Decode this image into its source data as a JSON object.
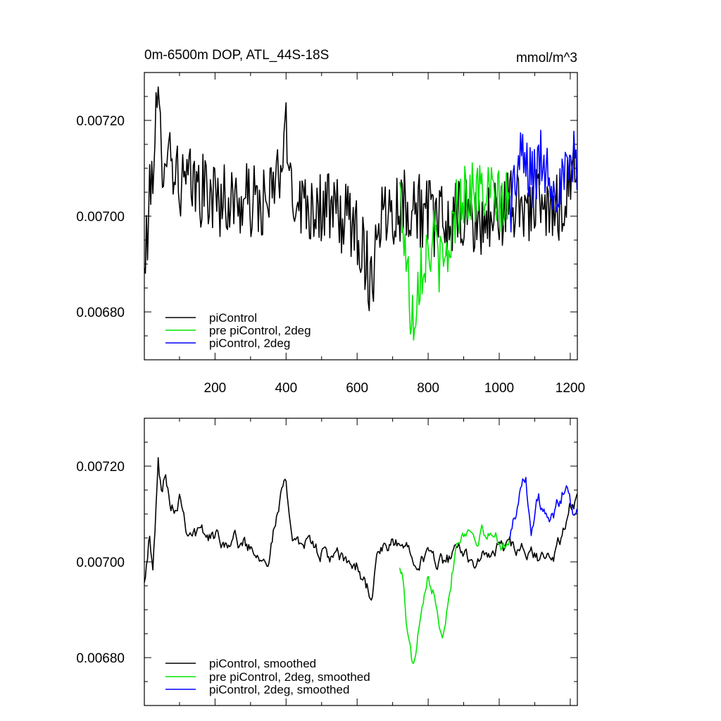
{
  "chart_data": [
    {
      "type": "line",
      "title": "0m-6500m DOP, ATL_44S-18S",
      "units": "mmol/m^3",
      "xlim": [
        1,
        1220
      ],
      "ylim": [
        0.0067,
        0.0073
      ],
      "x_ticks": [
        200,
        400,
        600,
        800,
        1000,
        1200
      ],
      "y_ticks": [
        0.0068,
        0.007,
        0.0072
      ],
      "y_tick_labels": [
        "0.00680",
        "0.00700",
        "0.00720"
      ],
      "legend_position": "bottom-left",
      "grid": false,
      "series": [
        {
          "name": "piControl",
          "color": "#000000",
          "x_start": 1,
          "x_end": 1220,
          "points": [
            [
              1,
              0.00687
            ],
            [
              10,
              0.00698
            ],
            [
              20,
              0.00706
            ],
            [
              30,
              0.00718
            ],
            [
              40,
              0.00722
            ],
            [
              50,
              0.00712
            ],
            [
              60,
              0.00716
            ],
            [
              80,
              0.00712
            ],
            [
              100,
              0.00707
            ],
            [
              150,
              0.00706
            ],
            [
              200,
              0.00704
            ],
            [
              250,
              0.00703
            ],
            [
              300,
              0.00703
            ],
            [
              350,
              0.00702
            ],
            [
              390,
              0.00712
            ],
            [
              400,
              0.00716
            ],
            [
              420,
              0.00705
            ],
            [
              450,
              0.00703
            ],
            [
              500,
              0.00702
            ],
            [
              550,
              0.007
            ],
            [
              600,
              0.00698
            ],
            [
              640,
              0.00686
            ],
            [
              660,
              0.007
            ],
            [
              700,
              0.00702
            ],
            [
              750,
              0.00703
            ],
            [
              800,
              0.007
            ],
            [
              850,
              0.00698
            ],
            [
              900,
              0.007
            ],
            [
              950,
              0.00698
            ],
            [
              1000,
              0.00701
            ],
            [
              1050,
              0.00703
            ],
            [
              1100,
              0.00702
            ],
            [
              1150,
              0.007
            ],
            [
              1190,
              0.00705
            ],
            [
              1200,
              0.0071
            ],
            [
              1220,
              0.00712
            ]
          ],
          "noise_amplitude": 8e-05
        },
        {
          "name": "pre piControl, 2deg",
          "color": "#00e600",
          "x_start": 720,
          "x_end": 1030,
          "points": [
            [
              720,
              0.00705
            ],
            [
              730,
              0.00698
            ],
            [
              740,
              0.0069
            ],
            [
              750,
              0.00681
            ],
            [
              760,
              0.00679
            ],
            [
              770,
              0.00686
            ],
            [
              780,
              0.0069
            ],
            [
              800,
              0.00693
            ],
            [
              820,
              0.00695
            ],
            [
              840,
              0.00688
            ],
            [
              860,
              0.00694
            ],
            [
              880,
              0.00702
            ],
            [
              900,
              0.00705
            ],
            [
              950,
              0.00705
            ],
            [
              1000,
              0.00703
            ],
            [
              1030,
              0.00702
            ]
          ],
          "noise_amplitude": 7e-05
        },
        {
          "name": "piControl, 2deg",
          "color": "#0000ff",
          "x_start": 1030,
          "x_end": 1220,
          "points": [
            [
              1030,
              0.00702
            ],
            [
              1060,
              0.00712
            ],
            [
              1080,
              0.0071
            ],
            [
              1100,
              0.00708
            ],
            [
              1120,
              0.00712
            ],
            [
              1150,
              0.00708
            ],
            [
              1180,
              0.00706
            ],
            [
              1200,
              0.0071
            ],
            [
              1220,
              0.00712
            ]
          ],
          "noise_amplitude": 7e-05
        }
      ]
    },
    {
      "type": "line",
      "xlim": [
        1,
        1220
      ],
      "ylim": [
        0.0067,
        0.0073
      ],
      "x_ticks": [
        200,
        400,
        600,
        800,
        1000,
        1200
      ],
      "y_ticks": [
        0.0068,
        0.007,
        0.0072
      ],
      "y_tick_labels": [
        "0.00680",
        "0.00700",
        "0.00720"
      ],
      "legend_position": "bottom-left",
      "grid": false,
      "series": [
        {
          "name": "piControl, smoothed",
          "color": "#000000",
          "x_start": 1,
          "x_end": 1220,
          "points": [
            [
              1,
              0.00697
            ],
            [
              15,
              0.00706
            ],
            [
              25,
              0.00697
            ],
            [
              40,
              0.00721
            ],
            [
              50,
              0.00713
            ],
            [
              60,
              0.0072
            ],
            [
              75,
              0.00713
            ],
            [
              90,
              0.00712
            ],
            [
              100,
              0.00715
            ],
            [
              120,
              0.00708
            ],
            [
              150,
              0.00706
            ],
            [
              200,
              0.00705
            ],
            [
              250,
              0.00705
            ],
            [
              300,
              0.00703
            ],
            [
              350,
              0.00702
            ],
            [
              395,
              0.00716
            ],
            [
              420,
              0.00706
            ],
            [
              450,
              0.00704
            ],
            [
              500,
              0.00702
            ],
            [
              550,
              0.007
            ],
            [
              600,
              0.00699
            ],
            [
              640,
              0.00693
            ],
            [
              660,
              0.00702
            ],
            [
              700,
              0.00703
            ],
            [
              750,
              0.00703
            ],
            [
              800,
              0.00701
            ],
            [
              850,
              0.007
            ],
            [
              900,
              0.00702
            ],
            [
              950,
              0.007
            ],
            [
              1000,
              0.00703
            ],
            [
              1050,
              0.00702
            ],
            [
              1100,
              0.00701
            ],
            [
              1150,
              0.007
            ],
            [
              1190,
              0.00708
            ],
            [
              1200,
              0.00712
            ],
            [
              1220,
              0.00712
            ]
          ],
          "noise_amplitude": 3e-05
        },
        {
          "name": "pre piControl, 2deg, smoothed",
          "color": "#00e600",
          "x_start": 720,
          "x_end": 1030,
          "points": [
            [
              720,
              0.007
            ],
            [
              730,
              0.00696
            ],
            [
              740,
              0.00686
            ],
            [
              750,
              0.00681
            ],
            [
              760,
              0.00677
            ],
            [
              770,
              0.00684
            ],
            [
              780,
              0.00687
            ],
            [
              800,
              0.00695
            ],
            [
              820,
              0.00694
            ],
            [
              840,
              0.00686
            ],
            [
              860,
              0.00695
            ],
            [
              880,
              0.00705
            ],
            [
              900,
              0.00707
            ],
            [
              950,
              0.00706
            ],
            [
              1000,
              0.00705
            ],
            [
              1030,
              0.00704
            ]
          ],
          "noise_amplitude": 3e-05
        },
        {
          "name": "piControl, 2deg, smoothed",
          "color": "#0000ff",
          "x_start": 1030,
          "x_end": 1220,
          "points": [
            [
              1030,
              0.00706
            ],
            [
              1060,
              0.00715
            ],
            [
              1075,
              0.00719
            ],
            [
              1090,
              0.00706
            ],
            [
              1110,
              0.00713
            ],
            [
              1140,
              0.00707
            ],
            [
              1170,
              0.00712
            ],
            [
              1190,
              0.00717
            ],
            [
              1210,
              0.00708
            ],
            [
              1220,
              0.00712
            ]
          ],
          "noise_amplitude": 3e-05
        }
      ]
    }
  ]
}
